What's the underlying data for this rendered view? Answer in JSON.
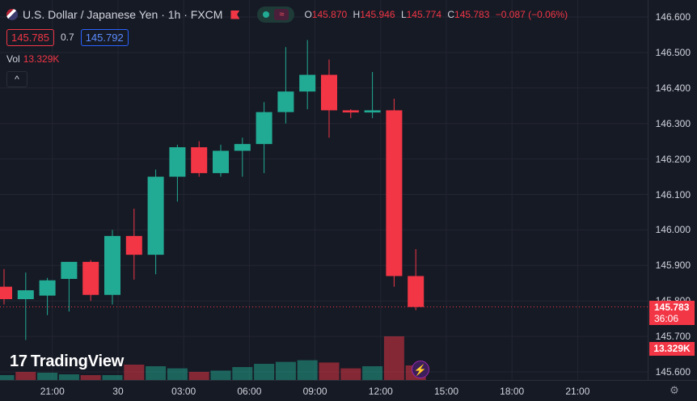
{
  "symbol": {
    "title": "U.S. Dollar / Japanese Yen · 1h · FXCM",
    "flag_icon": "us-flag-icon"
  },
  "ohlc": {
    "o_key": "O",
    "o": "145.870",
    "h_key": "H",
    "h": "145.946",
    "l_key": "L",
    "l": "145.774",
    "c_key": "C",
    "c": "145.783",
    "change": "−0.087 (−0.06%)"
  },
  "quotes": {
    "sell": "145.785",
    "spread": "0.7",
    "buy": "145.792"
  },
  "volume": {
    "label": "Vol",
    "value": "13.329K"
  },
  "collapse_icon": "^",
  "last_price": {
    "price": "145.783",
    "countdown": "36:06"
  },
  "brand": {
    "name": "TradingView",
    "mark": "17"
  },
  "colors": {
    "up": "#22ab94",
    "down": "#f23645",
    "background": "#161a25",
    "grid": "#232632"
  },
  "chart_data": {
    "type": "candlestick",
    "y_axis": {
      "min": 145.6,
      "max": 146.6,
      "step": 0.1,
      "labels": [
        "146.600",
        "146.500",
        "146.400",
        "146.300",
        "146.200",
        "146.100",
        "146.000",
        "145.900",
        "145.800",
        "145.700",
        "145.600"
      ]
    },
    "x_axis": {
      "labels": [
        "18:00",
        "21:00",
        "30",
        "03:00",
        "06:00",
        "09:00",
        "12:00",
        "15:00",
        "18:00",
        "21:00"
      ]
    },
    "candles": [
      {
        "o": 145.84,
        "h": 145.89,
        "l": 145.79,
        "c": 145.805
      },
      {
        "o": 145.805,
        "h": 145.88,
        "l": 145.69,
        "c": 145.83
      },
      {
        "o": 145.815,
        "h": 145.865,
        "l": 145.76,
        "c": 145.858
      },
      {
        "o": 145.862,
        "h": 145.91,
        "l": 145.77,
        "c": 145.91
      },
      {
        "o": 145.91,
        "h": 145.915,
        "l": 145.8,
        "c": 145.817
      },
      {
        "o": 145.817,
        "h": 146.0,
        "l": 145.79,
        "c": 145.983
      },
      {
        "o": 145.983,
        "h": 146.06,
        "l": 145.86,
        "c": 145.93
      },
      {
        "o": 145.93,
        "h": 146.17,
        "l": 145.875,
        "c": 146.15
      },
      {
        "o": 146.15,
        "h": 146.24,
        "l": 146.08,
        "c": 146.233
      },
      {
        "o": 146.233,
        "h": 146.25,
        "l": 146.15,
        "c": 146.16
      },
      {
        "o": 146.16,
        "h": 146.24,
        "l": 146.15,
        "c": 146.223
      },
      {
        "o": 146.223,
        "h": 146.26,
        "l": 146.15,
        "c": 146.242
      },
      {
        "o": 146.242,
        "h": 146.36,
        "l": 146.16,
        "c": 146.332
      },
      {
        "o": 146.332,
        "h": 146.515,
        "l": 146.3,
        "c": 146.39
      },
      {
        "o": 146.39,
        "h": 146.535,
        "l": 146.34,
        "c": 146.437
      },
      {
        "o": 146.437,
        "h": 146.48,
        "l": 146.26,
        "c": 146.337
      },
      {
        "o": 146.337,
        "h": 146.34,
        "l": 146.315,
        "c": 146.331
      },
      {
        "o": 146.331,
        "h": 146.445,
        "l": 146.315,
        "c": 146.337
      },
      {
        "o": 146.337,
        "h": 146.37,
        "l": 145.84,
        "c": 145.87
      },
      {
        "o": 145.87,
        "h": 145.946,
        "l": 145.774,
        "c": 145.783
      }
    ],
    "volumes": [
      {
        "v": 0.3,
        "dir": "up"
      },
      {
        "v": 0.5,
        "dir": "down"
      },
      {
        "v": 0.45,
        "dir": "up"
      },
      {
        "v": 0.35,
        "dir": "up"
      },
      {
        "v": 0.3,
        "dir": "down"
      },
      {
        "v": 0.3,
        "dir": "up"
      },
      {
        "v": 0.95,
        "dir": "down"
      },
      {
        "v": 0.85,
        "dir": "up"
      },
      {
        "v": 0.72,
        "dir": "up"
      },
      {
        "v": 0.5,
        "dir": "down"
      },
      {
        "v": 0.58,
        "dir": "up"
      },
      {
        "v": 0.8,
        "dir": "up"
      },
      {
        "v": 1.0,
        "dir": "up"
      },
      {
        "v": 1.12,
        "dir": "up"
      },
      {
        "v": 1.22,
        "dir": "up"
      },
      {
        "v": 1.08,
        "dir": "down"
      },
      {
        "v": 0.72,
        "dir": "down"
      },
      {
        "v": 0.85,
        "dir": "up"
      },
      {
        "v": 2.7,
        "dir": "down"
      },
      {
        "v": 0.9,
        "dir": "down"
      }
    ]
  }
}
